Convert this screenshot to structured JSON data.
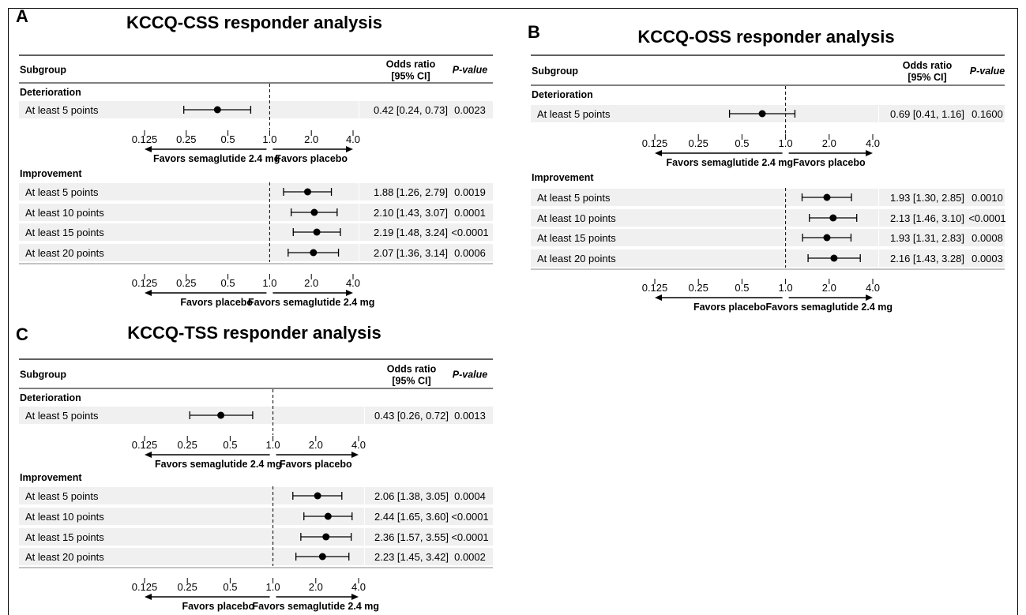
{
  "colors": {
    "row_band": "#f0f0f0",
    "ink": "#000000",
    "rule": "#888888"
  },
  "panels": [
    {
      "letter": "A",
      "title": "KCCQ-CSS responder analysis",
      "headers": {
        "subgroup": "Subgroup",
        "or_line1": "Odds ratio",
        "or_line2": "[95% CI]",
        "p": "P-value"
      },
      "ticks": [
        "0.125",
        "0.25",
        "0.5",
        "1.0",
        "2.0",
        "4.0"
      ],
      "deterioration": {
        "label": "Deterioration",
        "rows": [
          {
            "label": "At least 5 points",
            "or": 0.42,
            "lo": 0.24,
            "hi": 0.73,
            "ci_text": "0.42 [0.24, 0.73]",
            "p_text": "0.0023"
          }
        ],
        "favors_left": "Favors semaglutide 2.4 mg",
        "favors_right": "Favors placebo"
      },
      "improvement": {
        "label": "Improvement",
        "rows": [
          {
            "label": "At least 5 points",
            "or": 1.88,
            "lo": 1.26,
            "hi": 2.79,
            "ci_text": "1.88 [1.26, 2.79]",
            "p_text": "0.0019"
          },
          {
            "label": "At least 10 points",
            "or": 2.1,
            "lo": 1.43,
            "hi": 3.07,
            "ci_text": "2.10 [1.43, 3.07]",
            "p_text": "0.0001"
          },
          {
            "label": "At least 15 points",
            "or": 2.19,
            "lo": 1.48,
            "hi": 3.24,
            "ci_text": "2.19 [1.48, 3.24]",
            "p_text": "<0.0001"
          },
          {
            "label": "At least 20 points",
            "or": 2.07,
            "lo": 1.36,
            "hi": 3.14,
            "ci_text": "2.07 [1.36, 3.14]",
            "p_text": "0.0006"
          }
        ],
        "favors_left": "Favors placebo",
        "favors_right": "Favors semaglutide 2.4 mg"
      }
    },
    {
      "letter": "B",
      "title": "KCCQ-OSS responder analysis",
      "headers": {
        "subgroup": "Subgroup",
        "or_line1": "Odds ratio",
        "or_line2": "[95% CI]",
        "p": "P-value"
      },
      "ticks": [
        "0.125",
        "0.25",
        "0.5",
        "1.0",
        "2.0",
        "4.0"
      ],
      "deterioration": {
        "label": "Deterioration",
        "rows": [
          {
            "label": "At least 5 points",
            "or": 0.69,
            "lo": 0.41,
            "hi": 1.16,
            "ci_text": "0.69 [0.41, 1.16]",
            "p_text": "0.1600"
          }
        ],
        "favors_left": "Favors semaglutide 2.4 mg",
        "favors_right": "Favors placebo"
      },
      "improvement": {
        "label": "Improvement",
        "rows": [
          {
            "label": "At least 5 points",
            "or": 1.93,
            "lo": 1.3,
            "hi": 2.85,
            "ci_text": "1.93 [1.30, 2.85]",
            "p_text": "0.0010"
          },
          {
            "label": "At least 10 points",
            "or": 2.13,
            "lo": 1.46,
            "hi": 3.1,
            "ci_text": "2.13 [1.46, 3.10]",
            "p_text": "<0.0001"
          },
          {
            "label": "At least 15 points",
            "or": 1.93,
            "lo": 1.31,
            "hi": 2.83,
            "ci_text": "1.93 [1.31, 2.83]",
            "p_text": "0.0008"
          },
          {
            "label": "At least 20 points",
            "or": 2.16,
            "lo": 1.43,
            "hi": 3.28,
            "ci_text": "2.16 [1.43, 3.28]",
            "p_text": "0.0003"
          }
        ],
        "favors_left": "Favors placebo",
        "favors_right": "Favors semaglutide 2.4 mg"
      }
    },
    {
      "letter": "C",
      "title": "KCCQ-TSS responder analysis",
      "headers": {
        "subgroup": "Subgroup",
        "or_line1": "Odds ratio",
        "or_line2": "[95% CI]",
        "p": "P-value"
      },
      "ticks": [
        "0.125",
        "0.25",
        "0.5",
        "1.0",
        "2.0",
        "4.0"
      ],
      "deterioration": {
        "label": "Deterioration",
        "rows": [
          {
            "label": "At least 5 points",
            "or": 0.43,
            "lo": 0.26,
            "hi": 0.72,
            "ci_text": "0.43 [0.26, 0.72]",
            "p_text": "0.0013"
          }
        ],
        "favors_left": "Favors semaglutide 2.4 mg",
        "favors_right": "Favors placebo"
      },
      "improvement": {
        "label": "Improvement",
        "rows": [
          {
            "label": "At least 5 points",
            "or": 2.06,
            "lo": 1.38,
            "hi": 3.05,
            "ci_text": "2.06 [1.38, 3.05]",
            "p_text": "0.0004"
          },
          {
            "label": "At least 10 points",
            "or": 2.44,
            "lo": 1.65,
            "hi": 3.6,
            "ci_text": "2.44 [1.65, 3.60]",
            "p_text": "<0.0001"
          },
          {
            "label": "At least 15 points",
            "or": 2.36,
            "lo": 1.57,
            "hi": 3.55,
            "ci_text": "2.36 [1.57, 3.55]",
            "p_text": "<0.0001"
          },
          {
            "label": "At least 20 points",
            "or": 2.23,
            "lo": 1.45,
            "hi": 3.42,
            "ci_text": "2.23 [1.45, 3.42]",
            "p_text": "0.0002"
          }
        ],
        "favors_left": "Favors placebo",
        "favors_right": "Favors semaglutide 2.4 mg"
      }
    }
  ],
  "chart_data": [
    {
      "type": "scatter",
      "title": "KCCQ-CSS responder analysis",
      "x_scale": "log2",
      "xlim": [
        0.125,
        4.0
      ],
      "reference_line": 1.0,
      "xticks": [
        "0.125",
        "0.25",
        "0.5",
        "1.0",
        "2.0",
        "4.0"
      ],
      "series": [
        {
          "name": "Deterioration",
          "categories": [
            "At least 5 points"
          ],
          "values": [
            0.42
          ],
          "ci_low": [
            0.24
          ],
          "ci_high": [
            0.73
          ],
          "p": [
            "0.0023"
          ]
        },
        {
          "name": "Improvement",
          "categories": [
            "At least 5 points",
            "At least 10 points",
            "At least 15 points",
            "At least 20 points"
          ],
          "values": [
            1.88,
            2.1,
            2.19,
            2.07
          ],
          "ci_low": [
            1.26,
            1.43,
            1.48,
            1.36
          ],
          "ci_high": [
            2.79,
            3.07,
            3.24,
            3.14
          ],
          "p": [
            "0.0019",
            "0.0001",
            "<0.0001",
            "0.0006"
          ]
        }
      ]
    },
    {
      "type": "scatter",
      "title": "KCCQ-OSS responder analysis",
      "x_scale": "log2",
      "xlim": [
        0.125,
        4.0
      ],
      "reference_line": 1.0,
      "xticks": [
        "0.125",
        "0.25",
        "0.5",
        "1.0",
        "2.0",
        "4.0"
      ],
      "series": [
        {
          "name": "Deterioration",
          "categories": [
            "At least 5 points"
          ],
          "values": [
            0.69
          ],
          "ci_low": [
            0.41
          ],
          "ci_high": [
            1.16
          ],
          "p": [
            "0.1600"
          ]
        },
        {
          "name": "Improvement",
          "categories": [
            "At least 5 points",
            "At least 10 points",
            "At least 15 points",
            "At least 20 points"
          ],
          "values": [
            1.93,
            2.13,
            1.93,
            2.16
          ],
          "ci_low": [
            1.3,
            1.46,
            1.31,
            1.43
          ],
          "ci_high": [
            2.85,
            3.1,
            2.83,
            3.28
          ],
          "p": [
            "0.0010",
            "<0.0001",
            "0.0008",
            "0.0003"
          ]
        }
      ]
    },
    {
      "type": "scatter",
      "title": "KCCQ-TSS responder analysis",
      "x_scale": "log2",
      "xlim": [
        0.125,
        4.0
      ],
      "reference_line": 1.0,
      "xticks": [
        "0.125",
        "0.25",
        "0.5",
        "1.0",
        "2.0",
        "4.0"
      ],
      "series": [
        {
          "name": "Deterioration",
          "categories": [
            "At least 5 points"
          ],
          "values": [
            0.43
          ],
          "ci_low": [
            0.26
          ],
          "ci_high": [
            0.72
          ],
          "p": [
            "0.0013"
          ]
        },
        {
          "name": "Improvement",
          "categories": [
            "At least 5 points",
            "At least 10 points",
            "At least 15 points",
            "At least 20 points"
          ],
          "values": [
            2.06,
            2.44,
            2.36,
            2.23
          ],
          "ci_low": [
            1.38,
            1.65,
            1.57,
            1.45
          ],
          "ci_high": [
            3.05,
            3.6,
            3.55,
            3.42
          ],
          "p": [
            "0.0004",
            "<0.0001",
            "<0.0001",
            "0.0002"
          ]
        }
      ]
    }
  ]
}
